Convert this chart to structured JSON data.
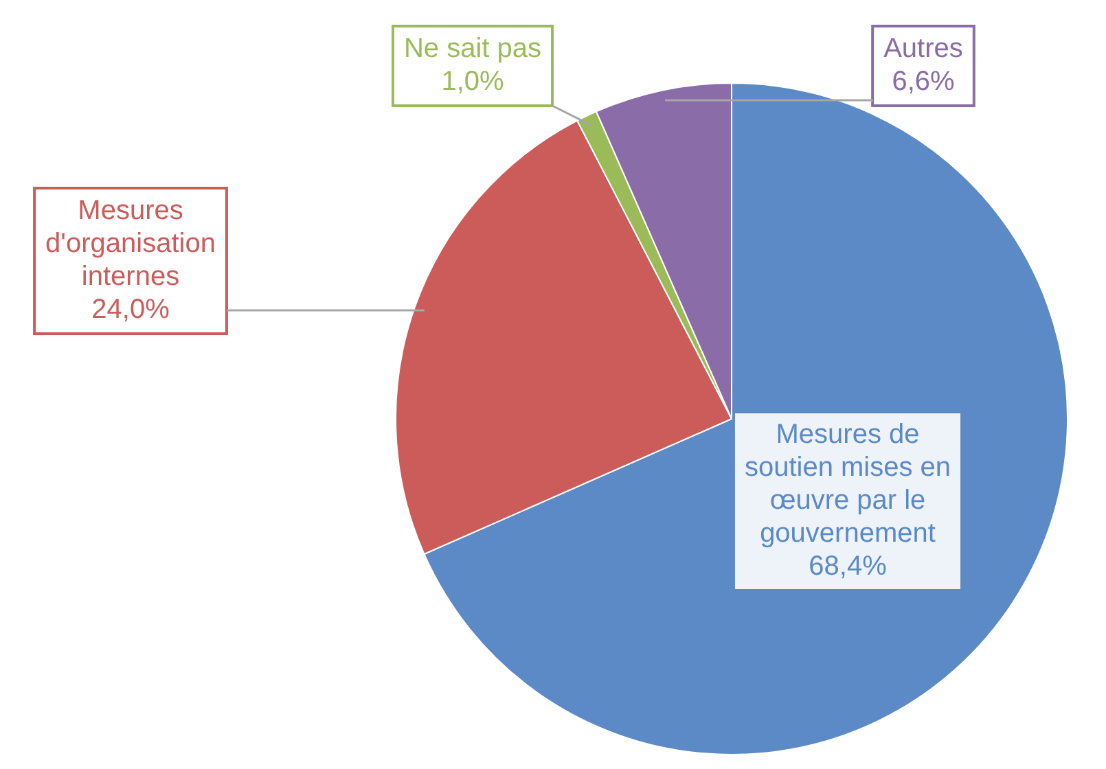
{
  "chart_data": {
    "type": "pie",
    "categories": [
      "Mesures de soutien mises en œuvre par le gouvernement",
      "Mesures d'organisation internes",
      "Ne sait pas",
      "Autres"
    ],
    "values": [
      68.4,
      24.0,
      1.0,
      6.6
    ],
    "colors": [
      "#5b8ac6",
      "#cc5c5a",
      "#9bbb59",
      "#8a6ca8"
    ],
    "value_labels": [
      "68,4%",
      "24,0%",
      "1,0%",
      "6,6%"
    ],
    "legend": false
  }
}
